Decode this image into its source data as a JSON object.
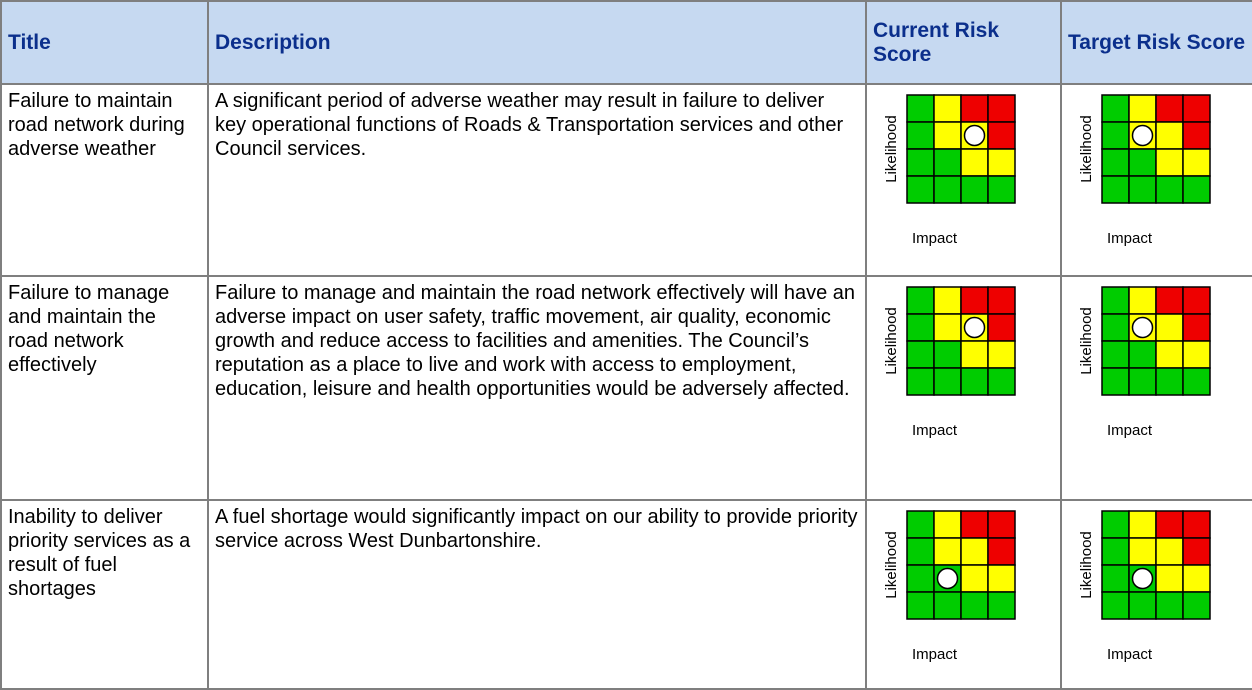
{
  "table": {
    "headers": [
      "Title",
      "Description",
      "Current Risk Score",
      "Target Risk Score"
    ],
    "axis_labels": {
      "y": "Likelihood",
      "x": "Impact"
    },
    "rows": [
      {
        "title": "Failure to maintain road network during adverse weather",
        "description": "A significant period of adverse weather may result in failure to deliver key operational functions of Roads & Transportation services and other Council services.",
        "current": {
          "likelihood": 3,
          "impact": 3
        },
        "target": {
          "likelihood": 3,
          "impact": 2
        }
      },
      {
        "title": "Failure to manage and maintain the road network effectively",
        "description": "Failure to manage and maintain the road network effectively will have an adverse impact on user safety, traffic movement, air quality, economic growth and reduce access to facilities and amenities. The Council’s reputation as a place to live and work with access to employment, education, leisure and health opportunities would be adversely affected.",
        "current": {
          "likelihood": 3,
          "impact": 3
        },
        "target": {
          "likelihood": 3,
          "impact": 2
        }
      },
      {
        "title": "Inability to deliver priority services as a result of fuel shortages",
        "description": "A fuel shortage would significantly impact on our ability to provide priority service across West Dunbartonshire.",
        "current": {
          "likelihood": 2,
          "impact": 2
        },
        "target": {
          "likelihood": 2,
          "impact": 2
        }
      }
    ]
  }
}
